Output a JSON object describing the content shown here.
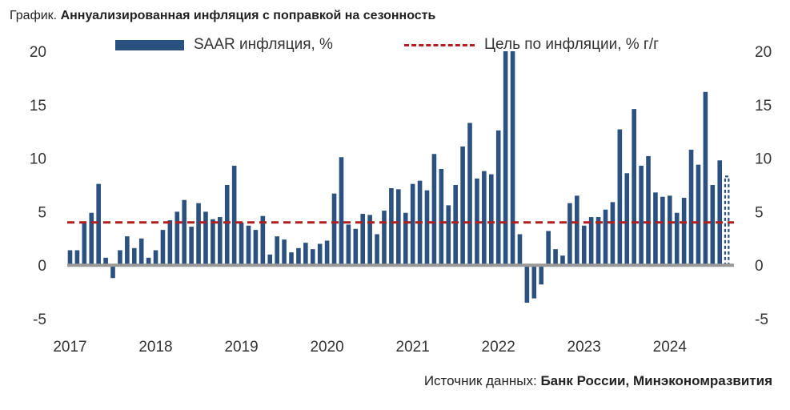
{
  "header": {
    "prefix": "График.",
    "title": "Аннуализированная инфляция с поправкой на сезонность"
  },
  "legend": {
    "bars_label": "SAAR инфляция, %",
    "target_label": "Цель по инфляции, % г/г"
  },
  "source": {
    "prefix": "Источник данных:",
    "text": "Банк России, Минэкономразвития"
  },
  "colors": {
    "bar": "#2a517f",
    "target": "#b01e1e",
    "zero": "#999999"
  },
  "chart_data": {
    "type": "bar",
    "title": "Аннуализированная инфляция с поправкой на сезонность",
    "xlabel": "",
    "ylabel": "",
    "ylim": [
      -5,
      20
    ],
    "yticks": [
      20,
      15,
      10,
      5,
      0,
      -5
    ],
    "ytick_labels": [
      "20",
      "15",
      "10",
      "5",
      "0",
      "-5"
    ],
    "dual_y_axis": true,
    "x_tick_labels": [
      "2017",
      "2018",
      "2019",
      "2020",
      "2021",
      "2022",
      "2023",
      "2024"
    ],
    "grid": false,
    "legend_position": "top",
    "series": [
      {
        "name": "SAAR инфляция, %",
        "kind": "bar",
        "values": [
          1.4,
          1.4,
          4.1,
          4.9,
          7.6,
          0.7,
          -1.2,
          1.4,
          2.7,
          1.6,
          2.5,
          0.7,
          1.4,
          3.3,
          4.2,
          5.0,
          6.1,
          3.6,
          5.8,
          5.0,
          4.3,
          4.5,
          7.5,
          9.3,
          4.0,
          3.7,
          3.3,
          4.6,
          1.0,
          2.7,
          2.4,
          1.2,
          1.6,
          2.1,
          1.5,
          2.0,
          2.3,
          6.7,
          10.1,
          3.8,
          3.4,
          4.8,
          4.7,
          2.9,
          5.1,
          7.2,
          7.1,
          4.9,
          7.6,
          7.9,
          7.0,
          10.4,
          9.0,
          5.6,
          7.5,
          11.1,
          13.3,
          8.1,
          8.8,
          8.5,
          12.6,
          20.0,
          20.0,
          2.9,
          -3.5,
          -3.1,
          -1.8,
          3.2,
          1.5,
          0.9,
          5.8,
          6.5,
          3.7,
          4.5,
          4.5,
          5.2,
          5.9,
          12.7,
          8.6,
          14.6,
          9.3,
          10.2,
          6.8,
          6.4,
          6.5,
          4.9,
          6.3,
          10.8,
          9.4,
          16.2,
          7.5,
          9.8
        ]
      },
      {
        "name": "Цель по инфляции, % г/г",
        "kind": "dashed-line",
        "value": 4.0
      }
    ],
    "last_bar_estimate": {
      "style": "dashed-outline",
      "value": 8.3
    }
  }
}
